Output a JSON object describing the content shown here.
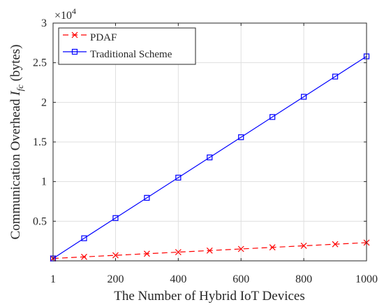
{
  "chart_data": {
    "type": "line",
    "x_ticks": [
      "1",
      "200",
      "400",
      "600",
      "800",
      "1000"
    ],
    "x_tick_values": [
      1,
      200,
      400,
      600,
      800,
      1000
    ],
    "y_ticks": [
      "0.5",
      "1",
      "1.5",
      "2",
      "2.5",
      "3"
    ],
    "y_tick_values": [
      5000,
      10000,
      15000,
      20000,
      25000,
      30000
    ],
    "y_multiplier": {
      "base": "×10",
      "exponent": "4"
    },
    "xlabel": "The Number of Hybrid IoT Devices",
    "ylabel": {
      "prefix": "Communication Overhead ",
      "symbol": "I",
      "subscript": "fc",
      "suffix": " (bytes)"
    },
    "xlim": [
      1,
      1000
    ],
    "ylim": [
      0,
      30000
    ],
    "grid": true,
    "legend_position": "top-left",
    "x": [
      1,
      100,
      200,
      300,
      400,
      500,
      600,
      700,
      800,
      900,
      1000
    ],
    "series": [
      {
        "name": "PDAF",
        "color": "#ff0000",
        "line_style": "dashed",
        "marker": "x",
        "values": [
          300,
          500,
          700,
          900,
          1100,
          1300,
          1500,
          1700,
          1900,
          2100,
          2300
        ]
      },
      {
        "name": "Traditional Scheme",
        "color": "#0000ff",
        "line_style": "solid",
        "marker": "square",
        "values": [
          300,
          2850,
          5400,
          7950,
          10500,
          13050,
          15600,
          18150,
          20700,
          23250,
          25800
        ]
      }
    ]
  }
}
